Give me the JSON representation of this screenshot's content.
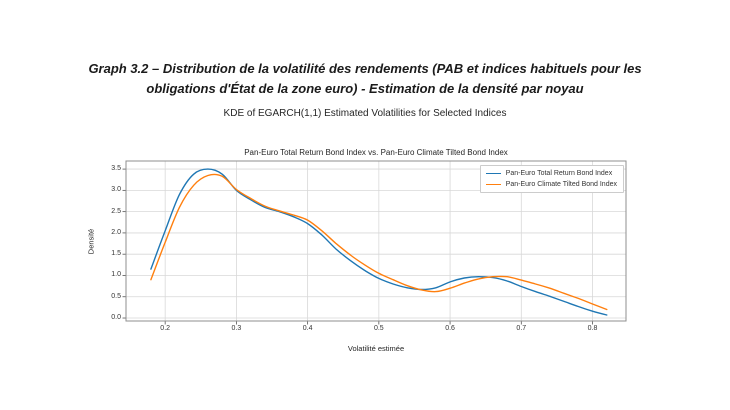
{
  "page": {
    "title_lines": [
      "Graph 3.2 – Distribution de la volatilité des rendements (PAB et indices habituels pour les",
      "obligations d'État de la zone euro) - Estimation de la densité par noyau"
    ],
    "subtitle": "KDE of EGARCH(1,1) Estimated Volatilities for Selected Indices"
  },
  "chart_data": {
    "type": "line",
    "title": "Pan-Euro Total Return Bond Index vs. Pan-Euro Climate Tilted Bond Index",
    "xlabel": "Volatilité estimée",
    "ylabel": "Densité",
    "grid": true,
    "legend_position": "upper right",
    "xlim": [
      0.145,
      0.847
    ],
    "ylim": [
      -0.07,
      3.69
    ],
    "x_ticks": [
      0.2,
      0.3,
      0.4,
      0.5,
      0.6,
      0.7,
      0.8
    ],
    "y_ticks": [
      0.0,
      0.5,
      1.0,
      1.5,
      2.0,
      2.5,
      3.0,
      3.5
    ],
    "x": [
      0.18,
      0.2,
      0.22,
      0.24,
      0.26,
      0.28,
      0.3,
      0.32,
      0.34,
      0.36,
      0.38,
      0.4,
      0.42,
      0.44,
      0.46,
      0.48,
      0.5,
      0.52,
      0.54,
      0.56,
      0.58,
      0.6,
      0.62,
      0.64,
      0.66,
      0.68,
      0.7,
      0.72,
      0.74,
      0.76,
      0.78,
      0.8,
      0.82
    ],
    "series": [
      {
        "name": "Pan-Euro Total Return Bond Index",
        "color": "#1f77b4",
        "values": [
          1.15,
          2.05,
          2.9,
          3.38,
          3.5,
          3.38,
          3.0,
          2.78,
          2.6,
          2.5,
          2.38,
          2.22,
          1.95,
          1.62,
          1.35,
          1.12,
          0.93,
          0.8,
          0.71,
          0.67,
          0.71,
          0.85,
          0.94,
          0.97,
          0.95,
          0.87,
          0.74,
          0.62,
          0.51,
          0.39,
          0.27,
          0.16,
          0.07
        ]
      },
      {
        "name": "Pan-Euro Climate Tilted Bond Index",
        "color": "#ff7f0e",
        "values": [
          0.9,
          1.78,
          2.6,
          3.12,
          3.35,
          3.33,
          3.02,
          2.81,
          2.63,
          2.52,
          2.42,
          2.3,
          2.05,
          1.75,
          1.48,
          1.25,
          1.05,
          0.9,
          0.76,
          0.66,
          0.62,
          0.7,
          0.82,
          0.92,
          0.97,
          0.97,
          0.89,
          0.8,
          0.7,
          0.58,
          0.46,
          0.33,
          0.2
        ]
      }
    ],
    "colors": {
      "grid": "#d8d8d8",
      "spine": "#8f8f8f",
      "tick": "#555555"
    }
  }
}
